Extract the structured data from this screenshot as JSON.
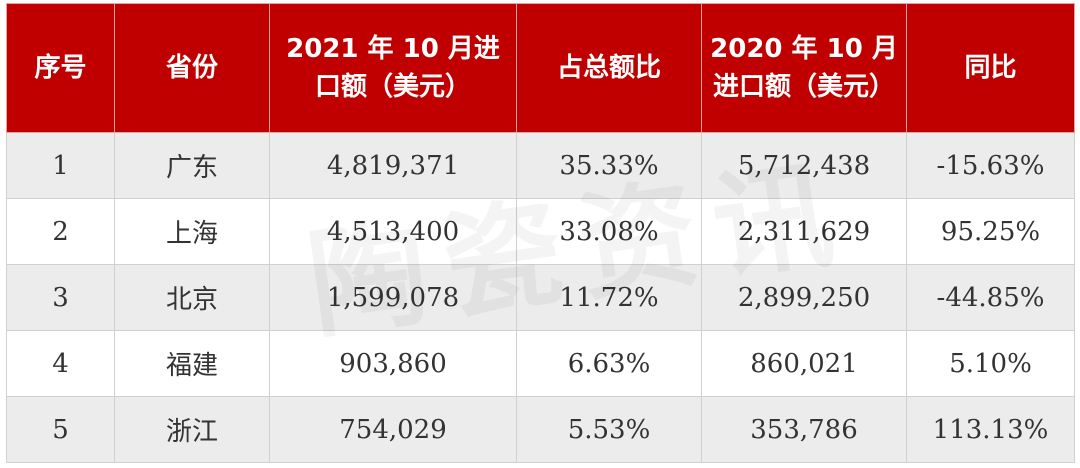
{
  "table": {
    "headers": [
      "序号",
      "省份",
      "2021 年 10 月进口额（美元）",
      "占总额比",
      "2020 年 10 月进口额（美元）",
      "同比"
    ],
    "rows": [
      [
        "1",
        "广东",
        "4,819,371",
        "35.33%",
        "5,712,438",
        "-15.63%"
      ],
      [
        "2",
        "上海",
        "4,513,400",
        "33.08%",
        "2,311,629",
        "95.25%"
      ],
      [
        "3",
        "北京",
        "1,599,078",
        "11.72%",
        "2,899,250",
        "-44.85%"
      ],
      [
        "4",
        "福建",
        "903,860",
        "6.63%",
        "860,021",
        "5.10%"
      ],
      [
        "5",
        "浙江",
        "754,029",
        "5.53%",
        "353,786",
        "113.13%"
      ]
    ]
  },
  "watermark": "陶瓷资讯",
  "colors": {
    "header_bg": "#c00000",
    "header_text": "#ffffff",
    "stripe": "#ececec"
  }
}
